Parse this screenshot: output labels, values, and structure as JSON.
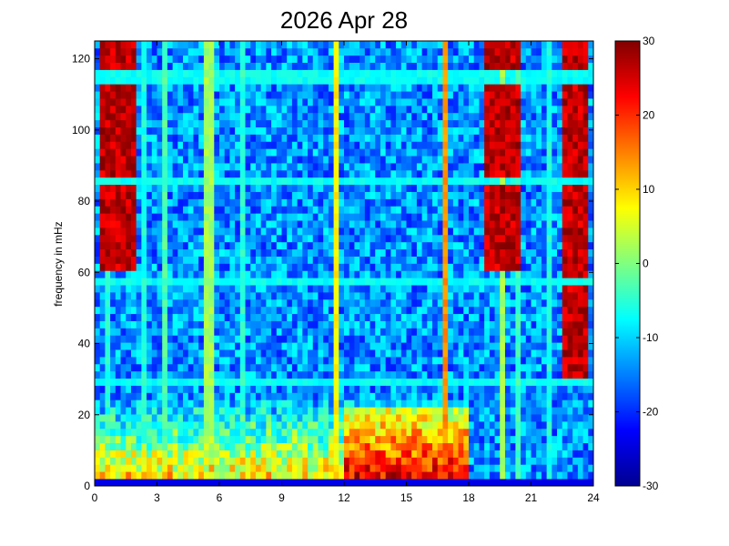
{
  "chart_data": {
    "type": "heatmap",
    "title": "2026 Apr 28",
    "xlabel": "",
    "ylabel": "frequency in mHz",
    "xlim": [
      0,
      24
    ],
    "ylim": [
      0,
      125
    ],
    "x_ticks": [
      "0",
      "3",
      "6",
      "9",
      "12",
      "15",
      "18",
      "21",
      "24"
    ],
    "y_ticks": [
      "0",
      "20",
      "40",
      "60",
      "80",
      "100",
      "120"
    ],
    "colorbar": {
      "colormap": "jet",
      "range": [
        -30,
        30
      ],
      "ticks": [
        "-30",
        "-20",
        "-10",
        "0",
        "10",
        "20",
        "30"
      ]
    },
    "grid": false,
    "grid_cells": {
      "time_bins": 96,
      "freq_bins": 62
    },
    "background_level": -14,
    "features": [
      {
        "kind": "high-power block",
        "time_range": [
          0.3,
          1.9
        ],
        "freq_range": [
          60,
          125
        ],
        "level": 30
      },
      {
        "kind": "high-power block",
        "time_range": [
          0.3,
          1.9
        ],
        "freq_range": [
          89,
          112
        ],
        "level": 30
      },
      {
        "kind": "high-power block",
        "time_range": [
          18.8,
          20.5
        ],
        "freq_range": [
          60,
          125
        ],
        "level": 30
      },
      {
        "kind": "high-power block",
        "time_range": [
          22.6,
          23.8
        ],
        "freq_range": [
          31,
          125
        ],
        "level": 30
      },
      {
        "kind": "low-frequency broadband energy",
        "time_range": [
          0,
          18
        ],
        "freq_range": [
          0,
          25
        ],
        "level": 12
      },
      {
        "kind": "strong low-frequency band",
        "time_range": [
          12,
          18
        ],
        "freq_range": [
          0,
          22
        ],
        "level": 26
      },
      {
        "kind": "horizontal band",
        "freq": 115,
        "level": -7
      },
      {
        "kind": "horizontal band",
        "freq": 86,
        "level": -7
      },
      {
        "kind": "horizontal band",
        "freq": 57,
        "level": -7
      },
      {
        "kind": "horizontal band",
        "freq": 29,
        "level": -7
      },
      {
        "kind": "vertical line",
        "time": 0.6,
        "level": -6
      },
      {
        "kind": "vertical line",
        "time": 2.4,
        "level": -6
      },
      {
        "kind": "vertical line",
        "time": 3.4,
        "level": -3
      },
      {
        "kind": "vertical line",
        "time": 5.5,
        "level": 2
      },
      {
        "kind": "vertical line",
        "time": 7.2,
        "level": -5
      },
      {
        "kind": "vertical line",
        "time": 11.7,
        "level": 8
      },
      {
        "kind": "vertical line",
        "time": 16.9,
        "level": 14
      },
      {
        "kind": "vertical line",
        "time": 19.6,
        "level": 2
      },
      {
        "kind": "vertical line",
        "time": 20.3,
        "level": -4
      },
      {
        "kind": "vertical line",
        "time": 21.8,
        "level": -6
      }
    ]
  }
}
